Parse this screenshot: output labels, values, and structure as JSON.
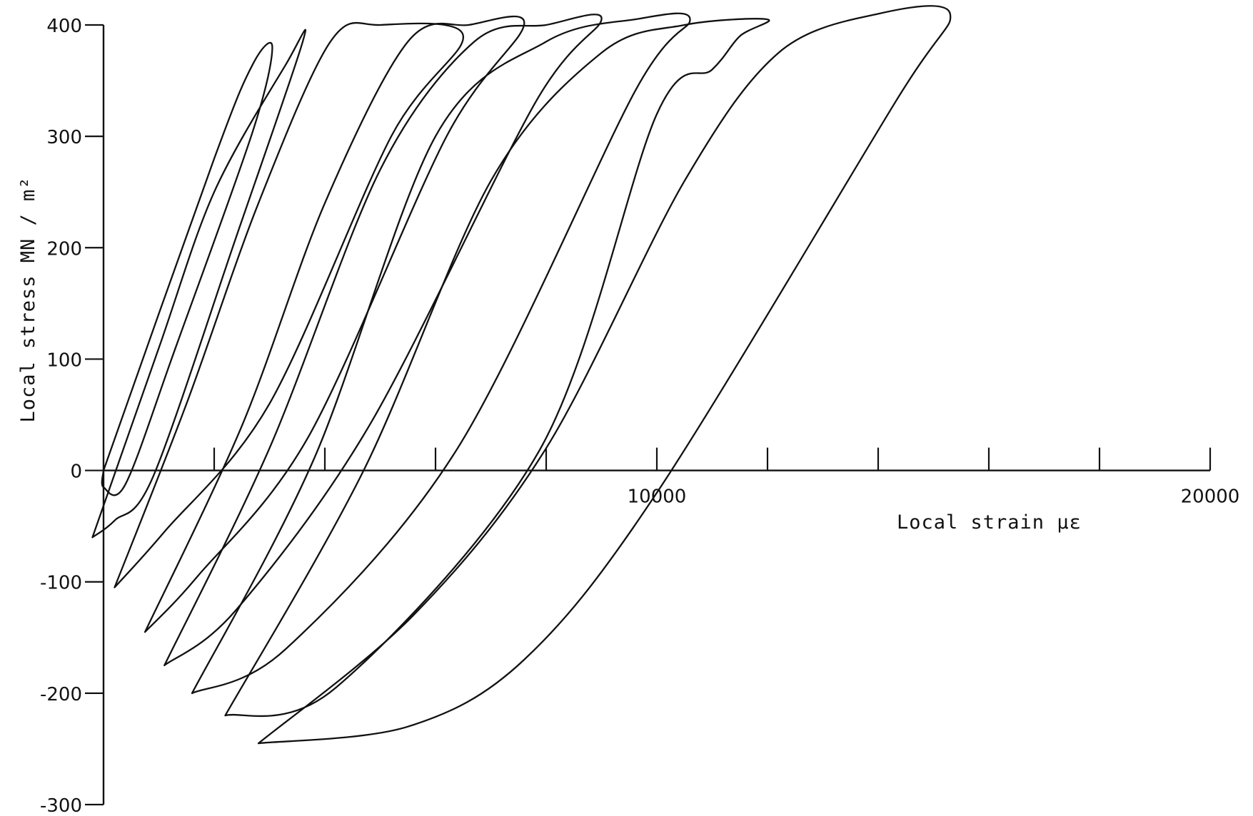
{
  "chart_data": {
    "type": "line",
    "title": "",
    "xlabel": "Local strain µε",
    "ylabel": "Local stress MN / m²",
    "xlim": [
      0,
      20000
    ],
    "ylim": [
      -300,
      400
    ],
    "x_ticks": [
      0,
      2000,
      4000,
      6000,
      8000,
      10000,
      12000,
      14000,
      16000,
      18000,
      20000
    ],
    "x_tick_labels": [
      {
        "value": 10000,
        "label": "10000"
      },
      {
        "value": 20000,
        "label": "20000"
      }
    ],
    "y_ticks": [
      -300,
      -200,
      -100,
      0,
      100,
      200,
      300,
      400
    ],
    "y_tick_labels": [
      "-300",
      "-200",
      "-100",
      "0",
      "100",
      "200",
      "300",
      "400"
    ],
    "grid": false,
    "legend": "none",
    "series": [
      {
        "loop": 1,
        "points": [
          [
            0,
            0
          ],
          [
            2000,
            280
          ],
          [
            2700,
            365
          ],
          [
            3050,
            380
          ],
          [
            2700,
            305
          ],
          [
            1300,
            110
          ],
          [
            400,
            -12
          ],
          [
            0,
            -15
          ],
          [
            0,
            0
          ]
        ]
      },
      {
        "loop": 2,
        "points": [
          [
            -200,
            -60
          ],
          [
            1000,
            110
          ],
          [
            2000,
            250
          ],
          [
            3300,
            365
          ],
          [
            3600,
            385
          ],
          [
            2400,
            210
          ],
          [
            900,
            -5
          ],
          [
            200,
            -45
          ],
          [
            -200,
            -60
          ]
        ]
      },
      {
        "loop": 3,
        "points": [
          [
            200,
            -105
          ],
          [
            1500,
            60
          ],
          [
            2800,
            240
          ],
          [
            4100,
            385
          ],
          [
            5000,
            400
          ],
          [
            6500,
            390
          ],
          [
            5200,
            300
          ],
          [
            3000,
            60
          ],
          [
            1100,
            -55
          ],
          [
            200,
            -105
          ]
        ]
      },
      {
        "loop": 4,
        "points": [
          [
            750,
            -145
          ],
          [
            2500,
            40
          ],
          [
            4000,
            240
          ],
          [
            5500,
            385
          ],
          [
            6600,
            400
          ],
          [
            7600,
            400
          ],
          [
            6200,
            300
          ],
          [
            3700,
            30
          ],
          [
            1700,
            -95
          ],
          [
            750,
            -145
          ]
        ]
      },
      {
        "loop": 5,
        "points": [
          [
            1100,
            -175
          ],
          [
            3000,
            20
          ],
          [
            5000,
            270
          ],
          [
            6700,
            385
          ],
          [
            8000,
            400
          ],
          [
            9000,
            405
          ],
          [
            7800,
            330
          ],
          [
            4800,
            40
          ],
          [
            2400,
            -125
          ],
          [
            1100,
            -175
          ]
        ]
      },
      {
        "loop": 6,
        "points": [
          [
            1600,
            -200
          ],
          [
            3800,
            10
          ],
          [
            6000,
            300
          ],
          [
            8000,
            385
          ],
          [
            9600,
            405
          ],
          [
            10600,
            405
          ],
          [
            9600,
            340
          ],
          [
            6400,
            20
          ],
          [
            3300,
            -160
          ],
          [
            1600,
            -200
          ]
        ]
      },
      {
        "loop": 7,
        "points": [
          [
            2200,
            -220
          ],
          [
            4700,
            0
          ],
          [
            7000,
            260
          ],
          [
            9000,
            375
          ],
          [
            10500,
            400
          ],
          [
            12000,
            405
          ],
          [
            11500,
            390
          ],
          [
            11000,
            360
          ],
          [
            10000,
            320
          ],
          [
            7900,
            20
          ],
          [
            4200,
            -195
          ],
          [
            2200,
            -220
          ]
        ]
      },
      {
        "loop": 8,
        "points": [
          [
            2800,
            -245
          ],
          [
            5600,
            -130
          ],
          [
            8000,
            20
          ],
          [
            10500,
            260
          ],
          [
            12200,
            375
          ],
          [
            14000,
            410
          ],
          [
            15300,
            410
          ],
          [
            14300,
            330
          ],
          [
            10000,
            -20
          ],
          [
            7600,
            -170
          ],
          [
            5500,
            -230
          ],
          [
            2800,
            -245
          ]
        ]
      }
    ]
  }
}
